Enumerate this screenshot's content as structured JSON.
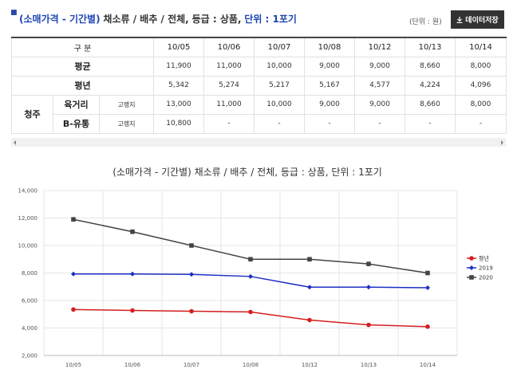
{
  "header": {
    "title_prefix": "(소매가격 - 기간별)",
    "title_mid": "채소류 / 배추 / 전체,",
    "title_grade": "등급 : 상품,",
    "title_unit": "단위 : 1포기",
    "unit_note": "(단위 : 원)",
    "download_label": "데이터저장"
  },
  "table": {
    "corner": "구 분",
    "dates": [
      "10/05",
      "10/06",
      "10/07",
      "10/08",
      "10/12",
      "10/13",
      "10/14"
    ],
    "avg_label": "평균",
    "avg": [
      "11,900",
      "11,000",
      "10,000",
      "9,000",
      "9,000",
      "8,660",
      "8,000"
    ],
    "normal_label": "평년",
    "normal": [
      "5,342",
      "5,274",
      "5,217",
      "5,167",
      "4,577",
      "4,224",
      "4,096"
    ],
    "region": "청주",
    "markets": [
      {
        "name": "육거리",
        "grade": "고랭지",
        "values": [
          "13,000",
          "11,000",
          "10,000",
          "9,000",
          "9,000",
          "8,660",
          "8,000"
        ]
      },
      {
        "name": "B-유통",
        "grade": "고랭지",
        "values": [
          "10,800",
          "-",
          "-",
          "-",
          "-",
          "-",
          "-"
        ]
      }
    ]
  },
  "chart_data": {
    "type": "line",
    "title": "(소매가격 - 기간별) 채소류 / 배추 / 전체, 등급 : 상품, 단위 : 1포기",
    "categories": [
      "10/05",
      "10/06",
      "10/07",
      "10/08",
      "10/12",
      "10/13",
      "10/14"
    ],
    "ylim": [
      2000,
      14000
    ],
    "yticks": [
      2000,
      4000,
      6000,
      8000,
      10000,
      12000,
      14000
    ],
    "ytick_labels": [
      "2,000",
      "4,000",
      "6,000",
      "8,000",
      "10,000",
      "12,000",
      "14,000"
    ],
    "legend_position": "right",
    "grid": true,
    "series": [
      {
        "name": "평년",
        "color": "#d41e1e",
        "marker": "circle",
        "values": [
          5342,
          5274,
          5217,
          5167,
          4577,
          4224,
          4096
        ]
      },
      {
        "name": "2019",
        "color": "#1c2fc4",
        "marker": "diamond",
        "values": [
          7930,
          7930,
          7900,
          7750,
          6970,
          6970,
          6930
        ]
      },
      {
        "name": "2020",
        "color": "#444444",
        "marker": "square",
        "values": [
          11900,
          11000,
          10000,
          9000,
          9000,
          8660,
          8000
        ]
      }
    ]
  }
}
